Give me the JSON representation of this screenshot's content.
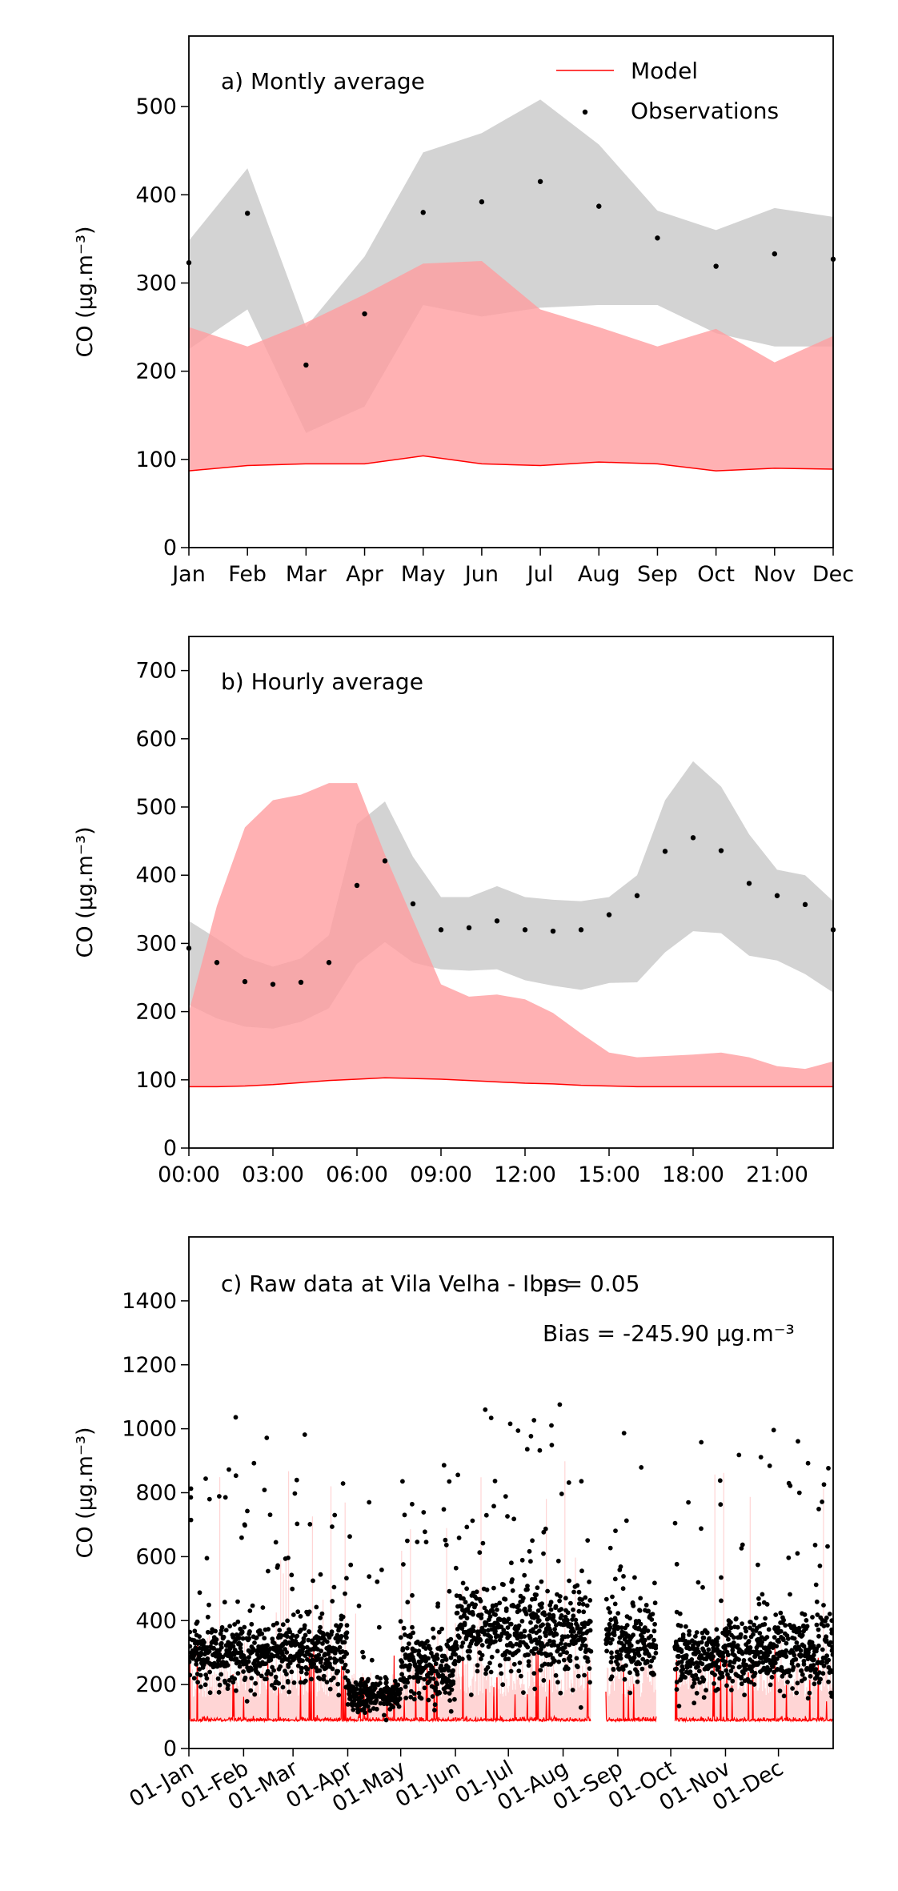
{
  "chart_data": [
    {
      "type": "area",
      "panel_label": "a) Montly average",
      "ylabel": "CO (μg.m⁻³)",
      "ylim": [
        0,
        580
      ],
      "yticks": [
        0,
        100,
        200,
        300,
        400,
        500
      ],
      "categories": [
        "Jan",
        "Feb",
        "Mar",
        "Apr",
        "May",
        "Jun",
        "Jul",
        "Aug",
        "Sep",
        "Oct",
        "Nov",
        "Dec"
      ],
      "legend": {
        "placement": "top-right",
        "model_label": "Model",
        "observations_label": "Observations"
      },
      "series": [
        {
          "name": "Model",
          "color": "#ff0000",
          "fill": "#ff9da0",
          "values": [
            87,
            93,
            95,
            95,
            104,
            95,
            93,
            97,
            95,
            87,
            90,
            89
          ],
          "upper": [
            250,
            228,
            255,
            287,
            322,
            325,
            270,
            250,
            228,
            248,
            210,
            240
          ]
        },
        {
          "name": "Observations",
          "color": "#000000",
          "fill": "#c8c8c8",
          "values": [
            323,
            379,
            207,
            265,
            380,
            392,
            415,
            387,
            351,
            319,
            333,
            327
          ],
          "lower": [
            225,
            270,
            130,
            160,
            275,
            262,
            272,
            275,
            275,
            243,
            228,
            228
          ],
          "upper": [
            348,
            430,
            250,
            330,
            448,
            470,
            508,
            457,
            382,
            360,
            385,
            375
          ]
        }
      ]
    },
    {
      "type": "area",
      "panel_label": "b) Hourly average",
      "ylabel": "CO (μg.m⁻³)",
      "ylim": [
        0,
        750
      ],
      "yticks": [
        0,
        100,
        200,
        300,
        400,
        500,
        600,
        700
      ],
      "x": [
        0,
        1,
        2,
        3,
        4,
        5,
        6,
        7,
        8,
        9,
        10,
        11,
        12,
        13,
        14,
        15,
        16,
        17,
        18,
        19,
        20,
        21,
        22,
        23
      ],
      "xticks": [
        0,
        3,
        6,
        9,
        12,
        15,
        18,
        21
      ],
      "xtick_labels": [
        "00:00",
        "03:00",
        "06:00",
        "09:00",
        "12:00",
        "15:00",
        "18:00",
        "21:00"
      ],
      "series": [
        {
          "name": "Model",
          "color": "#ff0000",
          "fill": "#ff9da0",
          "values": [
            90,
            90,
            91,
            93,
            96,
            99,
            101,
            103,
            102,
            101,
            99,
            97,
            95,
            94,
            92,
            91,
            90,
            90,
            90,
            90,
            90,
            90,
            90,
            90
          ],
          "upper": [
            200,
            355,
            470,
            510,
            518,
            535,
            535,
            430,
            335,
            240,
            222,
            225,
            218,
            198,
            168,
            140,
            133,
            135,
            137,
            140,
            133,
            120,
            116,
            127
          ]
        },
        {
          "name": "Observations",
          "color": "#000000",
          "fill": "#c8c8c8",
          "values": [
            293,
            272,
            244,
            240,
            243,
            272,
            385,
            421,
            358,
            320,
            323,
            333,
            320,
            318,
            320,
            342,
            370,
            435,
            455,
            436,
            388,
            370,
            357,
            320
          ],
          "lower": [
            210,
            190,
            178,
            175,
            185,
            205,
            270,
            302,
            272,
            262,
            260,
            262,
            246,
            238,
            232,
            242,
            243,
            287,
            318,
            315,
            282,
            275,
            255,
            228
          ],
          "upper": [
            333,
            307,
            280,
            266,
            278,
            312,
            475,
            508,
            427,
            368,
            368,
            384,
            368,
            364,
            362,
            368,
            400,
            510,
            567,
            530,
            460,
            408,
            400,
            362
          ]
        }
      ]
    },
    {
      "type": "scatter",
      "panel_label": "c) Raw data at Vila Velha - Ibes",
      "annotation_p": "p = 0.05",
      "annotation_bias": "Bias = -245.90 μg.m⁻³",
      "ylabel": "CO (μg.m⁻³)",
      "ylim": [
        0,
        1600
      ],
      "yticks": [
        0,
        200,
        400,
        600,
        800,
        1000,
        1200,
        1400
      ],
      "xlim": [
        "2019-01-01",
        "2019-12-31"
      ],
      "xticks": [
        "2019-01-01",
        "2019-02-01",
        "2019-03-01",
        "2019-04-01",
        "2019-05-01",
        "2019-06-01",
        "2019-07-01",
        "2019-08-01",
        "2019-09-01",
        "2019-10-01",
        "2019-11-01",
        "2019-12-01"
      ],
      "xtick_labels": [
        "01-Jan",
        "01-Feb",
        "01-Mar",
        "01-Apr",
        "01-May",
        "01-Jun",
        "01-Jul",
        "01-Aug",
        "01-Sep",
        "01-Oct",
        "01-Nov",
        "01-Dec"
      ],
      "gaps": [
        [
          "2019-08-17",
          "2019-08-25"
        ],
        [
          "2019-09-23",
          "2019-10-03"
        ]
      ],
      "model_color": "#ff0000",
      "observations_color": "#000000",
      "monthly_obs_median": [
        300,
        290,
        300,
        170,
        260,
        370,
        370,
        350,
        330,
        290,
        300,
        300
      ],
      "monthly_obs_spread": [
        150,
        160,
        170,
        80,
        170,
        230,
        230,
        220,
        200,
        170,
        180,
        200
      ],
      "monthly_model_base": [
        85,
        85,
        85,
        85,
        85,
        85,
        85,
        85,
        85,
        85,
        85,
        85
      ]
    }
  ]
}
